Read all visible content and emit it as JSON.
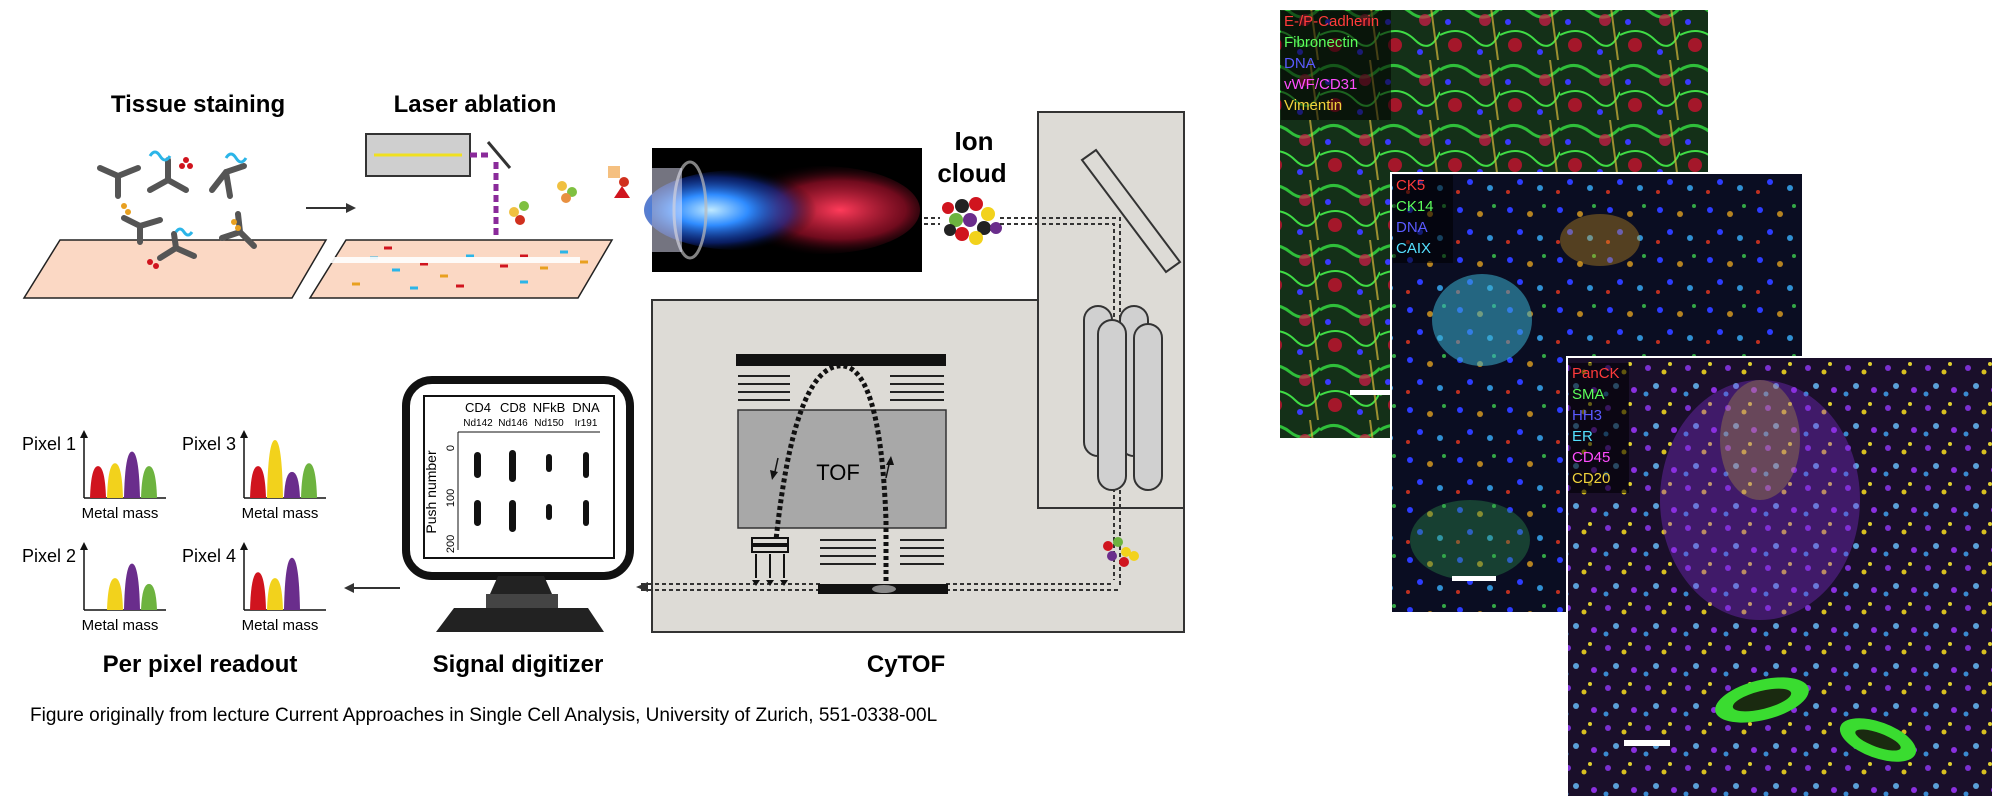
{
  "stages": {
    "tissue_staining": "Tissue staining",
    "laser_ablation": "Laser ablation",
    "ion_cloud_line1": "Ion",
    "ion_cloud_line2": "cloud",
    "cytof": "CyTOF",
    "tof": "TOF",
    "signal_digitizer": "Signal digitizer",
    "per_pixel_readout": "Per pixel readout"
  },
  "digitizer": {
    "channels": [
      "CD4",
      "CD8",
      "NFkB",
      "DNA"
    ],
    "isotopes": [
      "Nd142",
      "Nd146",
      "Nd150",
      "Ir191"
    ],
    "y_label": "Push number",
    "y_ticks": [
      "0",
      "100",
      "200"
    ]
  },
  "readout": {
    "axis_label": "Metal mass",
    "pixels": [
      {
        "label": "Pixel 1",
        "peaks": [
          0.55,
          0.6,
          0.8,
          0.55
        ]
      },
      {
        "label": "Pixel 3",
        "peaks": [
          0.55,
          1.0,
          0.45,
          0.6
        ]
      },
      {
        "label": "Pixel 2",
        "peaks": [
          0.0,
          0.55,
          0.8,
          0.45
        ]
      },
      {
        "label": "Pixel 4",
        "peaks": [
          0.65,
          0.55,
          0.9,
          0.0
        ]
      }
    ]
  },
  "panels": [
    {
      "name": "panel-1",
      "labels": [
        {
          "text": "E-/P-Cadherin",
          "color": "#ff3b3b"
        },
        {
          "text": "Fibronectin",
          "color": "#5cff5c"
        },
        {
          "text": "DNA",
          "color": "#5a5aff"
        },
        {
          "text": "vWF/CD31",
          "color": "#ff4dff"
        },
        {
          "text": "Vimentin",
          "color": "#f0d23c"
        }
      ]
    },
    {
      "name": "panel-2",
      "labels": [
        {
          "text": "CK5",
          "color": "#ff3b3b"
        },
        {
          "text": "CK14",
          "color": "#5cff5c"
        },
        {
          "text": "DNA",
          "color": "#5a5aff"
        },
        {
          "text": "CAIX",
          "color": "#55e0ff"
        }
      ]
    },
    {
      "name": "panel-3",
      "labels": [
        {
          "text": "PanCK",
          "color": "#ff3b3b"
        },
        {
          "text": "SMA",
          "color": "#5cff5c"
        },
        {
          "text": "HH3",
          "color": "#5a5aff"
        },
        {
          "text": "ER",
          "color": "#55e0ff"
        },
        {
          "text": "CD45",
          "color": "#ff4dff"
        },
        {
          "text": "CD20",
          "color": "#f0d23c"
        }
      ]
    }
  ],
  "caption": "Figure originally from lecture Current Approaches in Single Cell Analysis, University of Zurich, 551-0338-00L",
  "colors": {
    "peak_red": "#d0141e",
    "peak_yellow": "#f2d21c",
    "peak_purple": "#6a2d8c",
    "peak_green": "#6db33f",
    "machine_fill": "#dddbd6"
  }
}
